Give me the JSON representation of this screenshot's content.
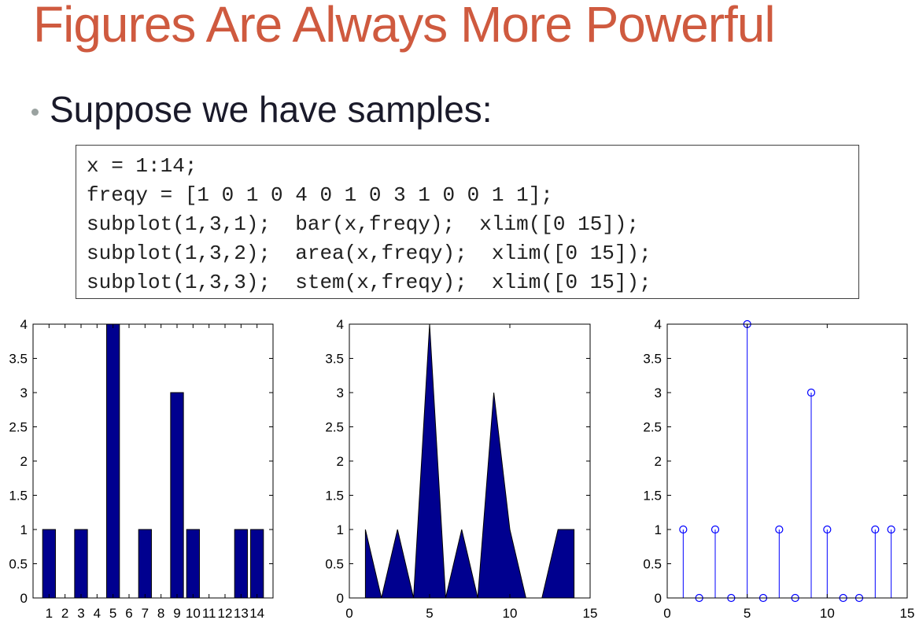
{
  "slide": {
    "title": "Figures Are Always More Powerful",
    "bullet": "Suppose we have samples:",
    "code_lines": [
      "x = 1:14;",
      "freqy = [1 0 1 0 4 0 1 0 3 1 0 0 1 1];",
      "subplot(1,3,1);  bar(x,freqy);  xlim([0 15]);",
      "subplot(1,3,2);  area(x,freqy);  xlim([0 15]);",
      "subplot(1,3,3);  stem(x,freqy);  xlim([0 15]);"
    ]
  },
  "colors": {
    "title": "#cf5a3f",
    "bar_fill": "#00008f",
    "stem": "#0000ff"
  },
  "chart_data": [
    {
      "type": "bar",
      "x": [
        1,
        2,
        3,
        4,
        5,
        6,
        7,
        8,
        9,
        10,
        11,
        12,
        13,
        14
      ],
      "values": [
        1,
        0,
        1,
        0,
        4,
        0,
        1,
        0,
        3,
        1,
        0,
        0,
        1,
        1
      ],
      "xlim": [
        0,
        15
      ],
      "ylim": [
        0,
        4
      ],
      "xticks": [
        1,
        2,
        3,
        4,
        5,
        6,
        7,
        8,
        9,
        10,
        11,
        12,
        13,
        14
      ],
      "xtick_labels": [
        "1",
        "2",
        "3",
        "4",
        "5",
        "6",
        "7",
        "8",
        "9",
        "10",
        "11",
        "12",
        "13",
        "14"
      ],
      "yticks": [
        0,
        0.5,
        1,
        1.5,
        2,
        2.5,
        3,
        3.5,
        4
      ],
      "ytick_labels": [
        "0",
        "0.5",
        "1",
        "1.5",
        "2",
        "2.5",
        "3",
        "3.5",
        "4"
      ],
      "grid": false,
      "title": "",
      "xlabel": "",
      "ylabel": ""
    },
    {
      "type": "area",
      "x": [
        1,
        2,
        3,
        4,
        5,
        6,
        7,
        8,
        9,
        10,
        11,
        12,
        13,
        14
      ],
      "values": [
        1,
        0,
        1,
        0,
        4,
        0,
        1,
        0,
        3,
        1,
        0,
        0,
        1,
        1
      ],
      "xlim": [
        0,
        15
      ],
      "ylim": [
        0,
        4
      ],
      "xticks": [
        0,
        5,
        10,
        15
      ],
      "xtick_labels": [
        "0",
        "5",
        "10",
        "15"
      ],
      "yticks": [
        0,
        0.5,
        1,
        1.5,
        2,
        2.5,
        3,
        3.5,
        4
      ],
      "ytick_labels": [
        "0",
        "0.5",
        "1",
        "1.5",
        "2",
        "2.5",
        "3",
        "3.5",
        "4"
      ],
      "grid": false,
      "title": "",
      "xlabel": "",
      "ylabel": ""
    },
    {
      "type": "stem",
      "x": [
        1,
        2,
        3,
        4,
        5,
        6,
        7,
        8,
        9,
        10,
        11,
        12,
        13,
        14
      ],
      "values": [
        1,
        0,
        1,
        0,
        4,
        0,
        1,
        0,
        3,
        1,
        0,
        0,
        1,
        1
      ],
      "xlim": [
        0,
        15
      ],
      "ylim": [
        0,
        4
      ],
      "xticks": [
        0,
        5,
        10,
        15
      ],
      "xtick_labels": [
        "0",
        "5",
        "10",
        "15"
      ],
      "yticks": [
        0,
        0.5,
        1,
        1.5,
        2,
        2.5,
        3,
        3.5,
        4
      ],
      "ytick_labels": [
        "0",
        "0.5",
        "1",
        "1.5",
        "2",
        "2.5",
        "3",
        "3.5",
        "4"
      ],
      "grid": false,
      "title": "",
      "xlabel": "",
      "ylabel": ""
    }
  ]
}
